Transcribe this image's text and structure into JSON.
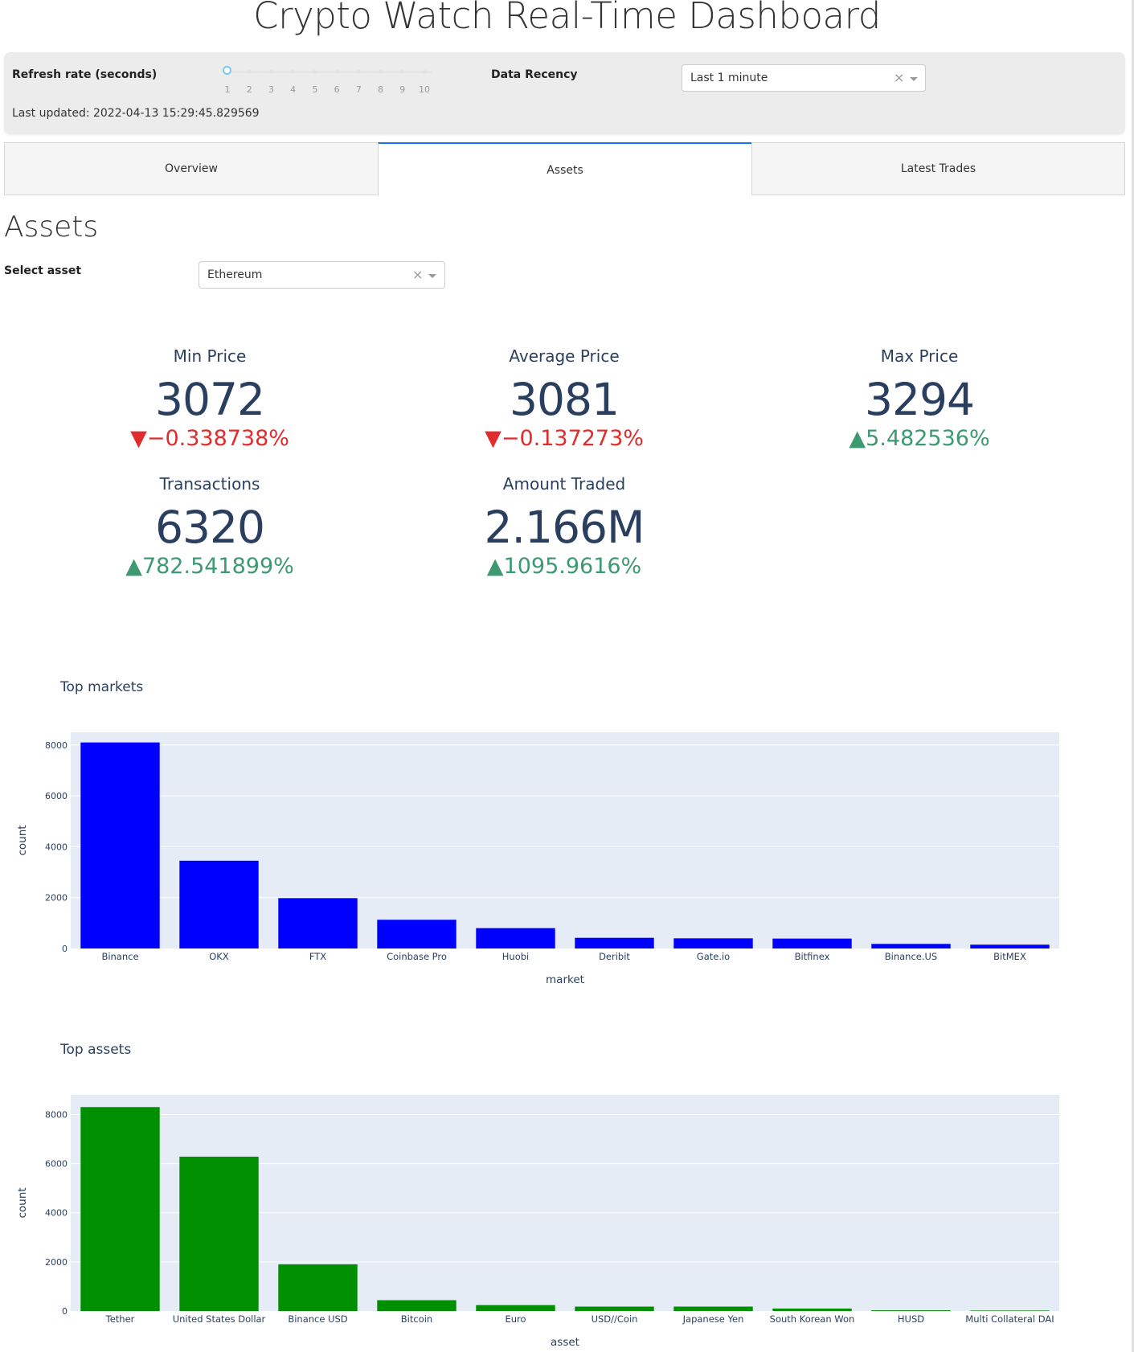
{
  "header": {
    "title": "Crypto Watch Real-Time Dashboard"
  },
  "controls": {
    "refresh_label": "Refresh rate (seconds)",
    "slider_ticks": [
      "1",
      "2",
      "3",
      "4",
      "5",
      "6",
      "7",
      "8",
      "9",
      "10"
    ],
    "slider_value": 1,
    "last_updated": "Last updated: 2022-04-13 15:29:45.829569",
    "recency_label": "Data Recency",
    "recency_value": "Last 1 minute",
    "clear_glyph": "×"
  },
  "tabs": [
    {
      "label": "Overview",
      "selected": false
    },
    {
      "label": "Assets",
      "selected": true
    },
    {
      "label": "Latest Trades",
      "selected": false
    }
  ],
  "assets": {
    "title": "Assets",
    "select_label": "Select asset",
    "select_value": "Ethereum",
    "kpis": [
      {
        "label": "Min Price",
        "value": "3072",
        "delta": "▼−0.338738%",
        "direction": "down"
      },
      {
        "label": "Average Price",
        "value": "3081",
        "delta": "▼−0.137273%",
        "direction": "down"
      },
      {
        "label": "Max Price",
        "value": "3294",
        "delta": "▲5.482536%",
        "direction": "up"
      },
      {
        "label": "Transactions",
        "value": "6320",
        "delta": "▲782.541899%",
        "direction": "up"
      },
      {
        "label": "Amount Traded",
        "value": "2.166M",
        "delta": "▲1095.9616%",
        "direction": "up"
      }
    ]
  },
  "colors": {
    "accent": "#1975FA",
    "markets_bar": "#0000FF",
    "assets_bar": "#008F00",
    "plot_bg": "#E5ECF6",
    "up": "#3D9970",
    "down": "#E02C2C"
  },
  "chart_data": [
    {
      "type": "bar",
      "title": "Top markets",
      "xlabel": "market",
      "ylabel": "count",
      "categories": [
        "Binance",
        "OKX",
        "FTX",
        "Coinbase Pro",
        "Huobi",
        "Deribit",
        "Gate.io",
        "Bitfinex",
        "Binance.US",
        "BitMEX"
      ],
      "values": [
        8100,
        3450,
        1980,
        1130,
        800,
        420,
        400,
        390,
        180,
        150
      ],
      "ylim": [
        0,
        8500
      ],
      "yticks": [
        0,
        2000,
        4000,
        6000,
        8000
      ],
      "color": "#0000FF",
      "grid": true
    },
    {
      "type": "bar",
      "title": "Top assets",
      "xlabel": "asset",
      "ylabel": "count",
      "categories": [
        "Tether",
        "United States Dollar",
        "Binance USD",
        "Bitcoin",
        "Euro",
        "USD//Coin",
        "Japanese Yen",
        "South Korean Won",
        "HUSD",
        "Multi Collateral DAI"
      ],
      "values": [
        8300,
        6280,
        1900,
        440,
        240,
        180,
        180,
        100,
        30,
        20
      ],
      "ylim": [
        0,
        8800
      ],
      "yticks": [
        0,
        2000,
        4000,
        6000,
        8000
      ],
      "color": "#008F00",
      "grid": true
    }
  ]
}
